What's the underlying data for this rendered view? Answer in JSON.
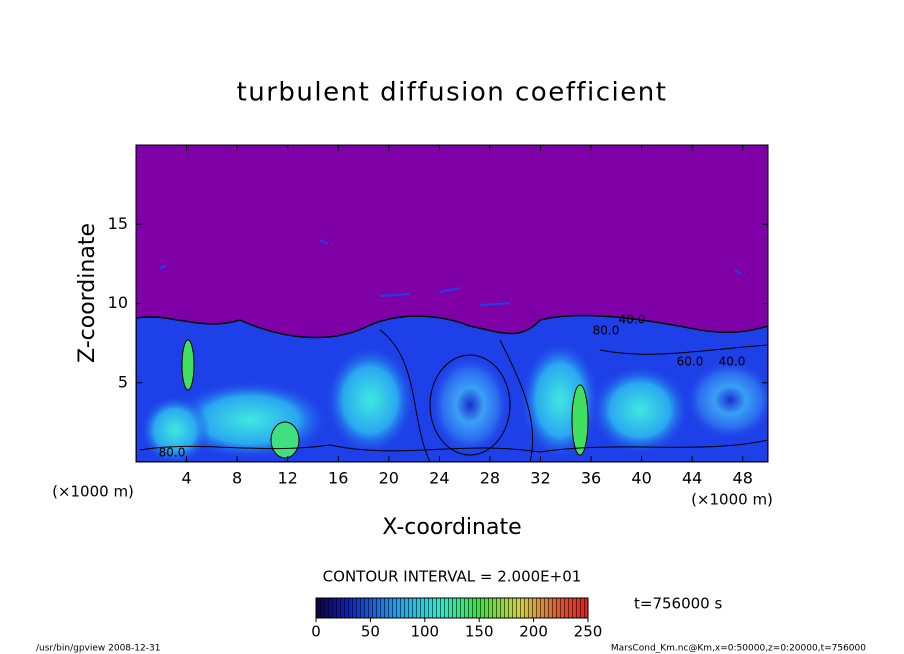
{
  "chart_data": {
    "type": "contour",
    "title": "turbulent diffusion coefficient",
    "x_label": "X-coordinate",
    "y_label": "Z-coordinate",
    "x_unit": "(×1000 m)",
    "y_unit": "(×1000 m)",
    "xlim": [
      0,
      50
    ],
    "xticks": [
      4,
      8,
      12,
      16,
      20,
      24,
      28,
      32,
      36,
      40,
      44,
      48
    ],
    "ylim": [
      0,
      20
    ],
    "yticks": [
      5,
      10,
      15
    ],
    "contour_labels": [
      "40.0",
      "80.0",
      "60.0",
      "40.0",
      "80.0"
    ],
    "contour_interval": "CONTOUR INTERVAL = 2.000E+01",
    "time_label": "t=756000 s",
    "colorbar": {
      "lim": [
        0,
        250
      ],
      "ticks": [
        0,
        50,
        100,
        150,
        200,
        250
      ]
    },
    "footer_left": "/usr/bin/gpview   2008-12-31",
    "footer_right": "MarsCond_Km.nc@Km,x=0:50000,z=0:20000,t=756000"
  }
}
